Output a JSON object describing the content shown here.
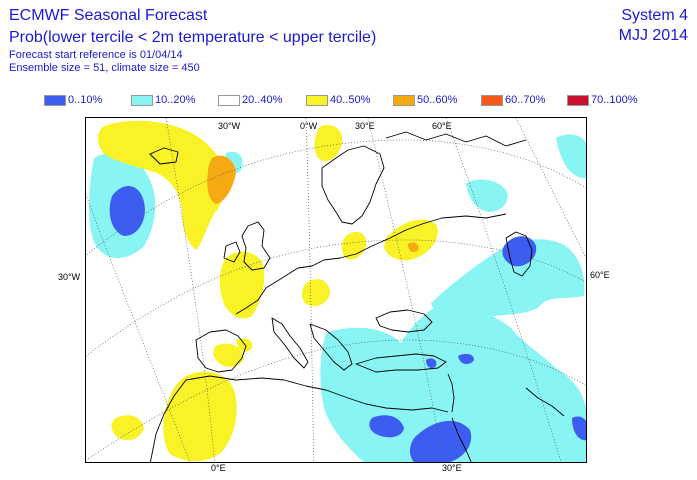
{
  "header": {
    "title": "ECMWF Seasonal Forecast",
    "subtitle": "Prob(lower tercile < 2m temperature < upper tercile)",
    "start_reference": "Forecast start reference is 01/04/14",
    "ensemble": "Ensemble size = 51, climate size = 450",
    "system": "System 4",
    "season": "MJJ 2014"
  },
  "legend": [
    {
      "label": "0..10%",
      "color": "#3d5cf0"
    },
    {
      "label": "10..20%",
      "color": "#88f4f4"
    },
    {
      "label": "20..40%",
      "color": "#ffffff"
    },
    {
      "label": "40..50%",
      "color": "#f8f227"
    },
    {
      "label": "50..60%",
      "color": "#f5aa12"
    },
    {
      "label": "60..70%",
      "color": "#f55818"
    },
    {
      "label": "70..100%",
      "color": "#c8132e"
    }
  ],
  "map": {
    "region": "Europe",
    "axis_labels": {
      "top_30w": "30°W",
      "top_0": "0°W",
      "top_30e": "30°E",
      "top_60e": "60°E",
      "left_30w": "30°W",
      "right_60e": "60°E",
      "bottom_0": "0°E",
      "bottom_30e": "30°E"
    },
    "colors": {
      "coast": "#000000",
      "grid": "#555555"
    }
  }
}
